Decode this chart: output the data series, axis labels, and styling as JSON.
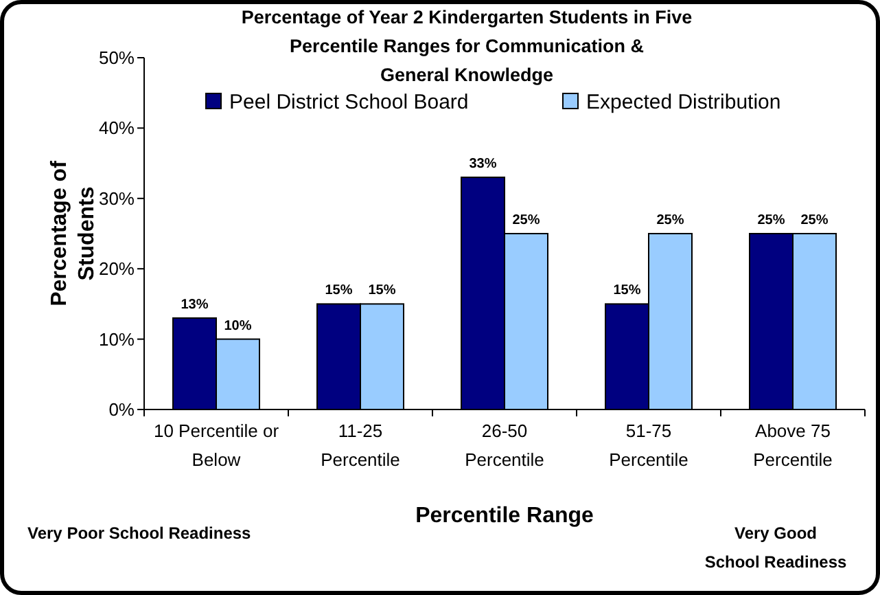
{
  "chart_data": {
    "type": "bar",
    "title": "Percentage of Year 2 Kindergarten Students in Five\nPercentile Ranges for Communication &\nGeneral Knowledge",
    "xlabel": "Percentile Range",
    "ylabel": "Percentage of\nStudents",
    "categories": [
      "10 Percentile or\nBelow",
      "11-25\nPercentile",
      "26-50\nPercentile",
      "51-75\nPercentile",
      "Above 75\nPercentile"
    ],
    "series": [
      {
        "name": "Peel District School Board",
        "color": "#000080",
        "values": [
          13,
          15,
          33,
          15,
          25
        ],
        "value_labels": [
          "13%",
          "15%",
          "33%",
          "15%",
          "25%"
        ]
      },
      {
        "name": "Expected Distribution",
        "color": "#99ccff",
        "values": [
          10,
          15,
          25,
          25,
          25
        ],
        "value_labels": [
          "10%",
          "15%",
          "25%",
          "25%",
          "25%"
        ]
      }
    ],
    "ylim": [
      0,
      50
    ],
    "yticks": [
      {
        "value": 0,
        "label": "0%"
      },
      {
        "value": 10,
        "label": "10%"
      },
      {
        "value": 20,
        "label": "20%"
      },
      {
        "value": 30,
        "label": "30%"
      },
      {
        "value": 40,
        "label": "40%"
      },
      {
        "value": 50,
        "label": "50%"
      }
    ],
    "legend": "top",
    "grid": false,
    "annotations": [
      "Very Poor School Readiness",
      "Very Good\nSchool Readiness"
    ]
  }
}
